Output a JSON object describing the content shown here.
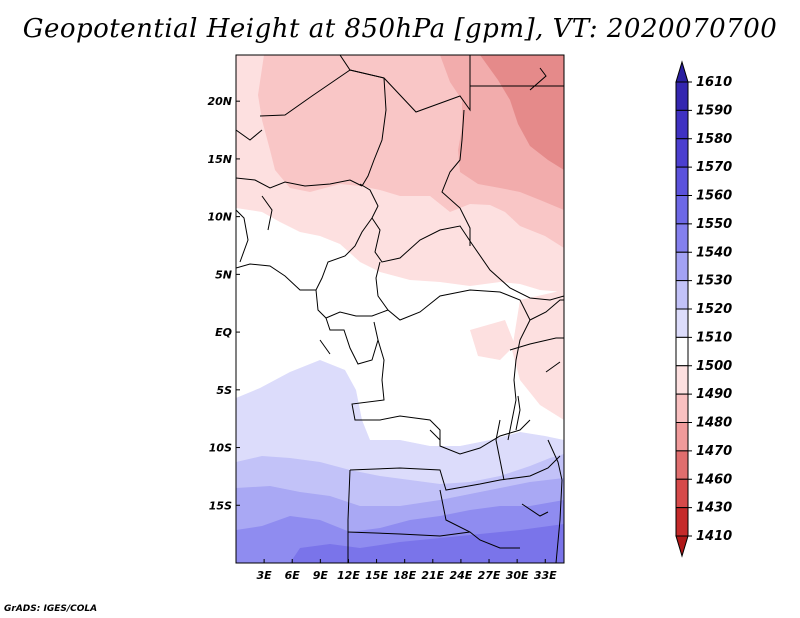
{
  "title": "Geopotential Height at 850hPa [gpm], VT: 2020070700",
  "footer": "GrADS: IGES/COLA",
  "map_data": {
    "variable": "Geopotential Height",
    "level": "850hPa",
    "units": "gpm",
    "valid_time": "2020070700",
    "region": "Central Africa",
    "lon_range": [
      0,
      35
    ],
    "lat_range": [
      -20,
      24
    ],
    "lon_ticks": [
      "3E",
      "6E",
      "9E",
      "12E",
      "15E",
      "18E",
      "21E",
      "24E",
      "27E",
      "30E",
      "33E"
    ],
    "lat_ticks": [
      "20N",
      "15N",
      "10N",
      "5N",
      "EQ",
      "5S",
      "10S",
      "15S"
    ]
  },
  "colorbar": {
    "levels": [
      "1610",
      "1590",
      "1580",
      "1570",
      "1560",
      "1550",
      "1540",
      "1530",
      "1520",
      "1510",
      "1500",
      "1490",
      "1480",
      "1470",
      "1460",
      "1430",
      "1410"
    ],
    "colors": [
      "#2a1fa0",
      "#3426b0",
      "#3f31c2",
      "#4b3fd0",
      "#5b52dc",
      "#6d68e6",
      "#8480ee",
      "#a3a2f4",
      "#c2c2f8",
      "#dcdcfb",
      "#ffffff",
      "#fde0e0",
      "#f9c0c0",
      "#f09a9a",
      "#e06e6e",
      "#d64a4a",
      "#c52a2a",
      "#b01818"
    ]
  }
}
